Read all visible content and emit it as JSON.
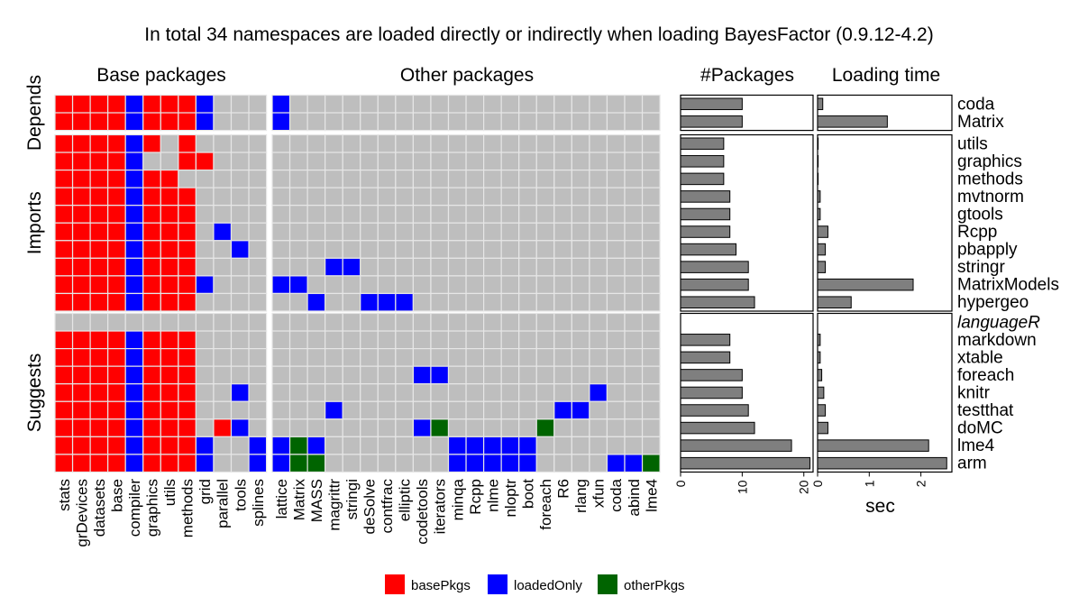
{
  "title": "In total 34 namespaces are loaded directly or indirectly when loading BayesFactor (0.9.12-4.2)",
  "panel_titles": {
    "base": "Base packages",
    "other": "Other packages",
    "count": "#Packages",
    "time": "Loading time"
  },
  "group_labels": [
    "Depends",
    "Imports",
    "Suggests"
  ],
  "legend": [
    {
      "label": "basePkgs",
      "color": "#ff0000"
    },
    {
      "label": "loadedOnly",
      "color": "#0000ff"
    },
    {
      "label": "otherPkgs",
      "color": "#006400"
    }
  ],
  "colors": {
    "empty": "#bebebe",
    "grid": "#e6e6e6",
    "bar": "#7f7f7f",
    "muted": "#aaaaaa"
  },
  "chart_data": {
    "type": "heatmap",
    "base_columns": [
      "stats",
      "grDevices",
      "datasets",
      "base",
      "compiler",
      "graphics",
      "utils",
      "methods",
      "grid",
      "parallel",
      "tools",
      "splines"
    ],
    "other_columns": [
      "lattice",
      "Matrix",
      "MASS",
      "magrittr",
      "stringi",
      "deSolve",
      "contfrac",
      "elliptic",
      "codetools",
      "iterators",
      "minqa",
      "Rcpp",
      "nlme",
      "nloptr",
      "boot",
      "foreach",
      "R6",
      "rlang",
      "xfun",
      "coda",
      "abind",
      "lme4"
    ],
    "rows": [
      {
        "group": 0,
        "name": "coda",
        "italic": false,
        "npkgs": 10,
        "time": 0.1,
        "base": "RRRRBRRRBOOO",
        "other": "BOOOOOOOOOOOOOOOOOOOOO"
      },
      {
        "group": 0,
        "name": "Matrix",
        "italic": false,
        "npkgs": 10,
        "time": 1.35,
        "base": "RRRRBRRRBOOO",
        "other": "BOOOOOOOOOOOOOOOOOOOOO"
      },
      {
        "group": 1,
        "name": "utils",
        "italic": false,
        "npkgs": 7,
        "time": 0.0,
        "base": "RRRRBROROOOO",
        "other": "OOOOOOOOOOOOOOOOOOOOOO"
      },
      {
        "group": 1,
        "name": "graphics",
        "italic": false,
        "npkgs": 7,
        "time": 0.0,
        "base": "RRRRBOORROOO",
        "other": "OOOOOOOOOOOOOOOOOOOOOO"
      },
      {
        "group": 1,
        "name": "methods",
        "italic": false,
        "npkgs": 7,
        "time": 0.0,
        "base": "RRRRBRROOOOO",
        "other": "OOOOOOOOOOOOOOOOOOOOOO"
      },
      {
        "group": 1,
        "name": "mvtnorm",
        "italic": false,
        "npkgs": 8,
        "time": 0.05,
        "base": "RRRRBRRROOOO",
        "other": "OOOOOOOOOOOOOOOOOOOOOO"
      },
      {
        "group": 1,
        "name": "gtools",
        "italic": false,
        "npkgs": 8,
        "time": 0.05,
        "base": "RRRRBRRROOOO",
        "other": "OOOOOOOOOOOOOOOOOOOOOO"
      },
      {
        "group": 1,
        "name": "Rcpp",
        "italic": false,
        "npkgs": 8,
        "time": 0.2,
        "base": "RRRRBRRROBOO",
        "other": "OOOOOOOOOOOOOOOOOOOOOO"
      },
      {
        "group": 1,
        "name": "pbapply",
        "italic": false,
        "npkgs": 9,
        "time": 0.15,
        "base": "RRRRBRRROOBO",
        "other": "OOOOOOOOOOOOOOOOOOOOOO"
      },
      {
        "group": 1,
        "name": "stringr",
        "italic": false,
        "npkgs": 11,
        "time": 0.15,
        "base": "RRRRBRRROOOO",
        "other": "OOOBBOOOOOOOOOOOOOOOOO"
      },
      {
        "group": 1,
        "name": "MatrixModels",
        "italic": false,
        "npkgs": 11,
        "time": 1.85,
        "base": "RRRRBRRRBOOO",
        "other": "BBOOOOOOOOOOOOOOOOOOOO"
      },
      {
        "group": 1,
        "name": "hypergeo",
        "italic": false,
        "npkgs": 12,
        "time": 0.65,
        "base": "RRRRBRRROOOO",
        "other": "OOBOOBBBOOOOOOOOOOOOOO"
      },
      {
        "group": 2,
        "name": "languageR",
        "italic": true,
        "npkgs": null,
        "time": null,
        "base": "OOOOOOOOOOOO",
        "other": "OOOOOOOOOOOOOOOOOOOOOO"
      },
      {
        "group": 2,
        "name": "markdown",
        "italic": false,
        "npkgs": 8,
        "time": 0.05,
        "base": "RRRRBRRROOOO",
        "other": "OOOOOOOOOOOOOOOOOOOOOO"
      },
      {
        "group": 2,
        "name": "xtable",
        "italic": false,
        "npkgs": 8,
        "time": 0.05,
        "base": "RRRRBRRROOOO",
        "other": "OOOOOOOOOOOOOOOOOOOOOO"
      },
      {
        "group": 2,
        "name": "foreach",
        "italic": false,
        "npkgs": 10,
        "time": 0.08,
        "base": "RRRRBRRROOOO",
        "other": "OOOOOOOOBBOOOOOOOOOOOO"
      },
      {
        "group": 2,
        "name": "knitr",
        "italic": false,
        "npkgs": 10,
        "time": 0.12,
        "base": "RRRRBRRROOBO",
        "other": "OOOOOOOOOOOOOOOOOOBOOO"
      },
      {
        "group": 2,
        "name": "testthat",
        "italic": false,
        "npkgs": 11,
        "time": 0.15,
        "base": "RRRRBRRROOOO",
        "other": "OOOBOOOOOOOOOOOOBBOOOO"
      },
      {
        "group": 2,
        "name": "doMC",
        "italic": false,
        "npkgs": 12,
        "time": 0.2,
        "base": "RRRRBRRRORBO",
        "other": "OOOOOOOOBGOOOOOGOOOOOO"
      },
      {
        "group": 2,
        "name": "lme4",
        "italic": false,
        "npkgs": 18,
        "time": 2.15,
        "base": "RRRRBRRRBOOB",
        "other": "BGBOOOOOOOBBBBBOOOOOOO"
      },
      {
        "group": 2,
        "name": "arm",
        "italic": false,
        "npkgs": 21,
        "time": 2.5,
        "base": "RRRRBRRRBOOB",
        "other": "BGGOOOOOOOBBBBBOOOOBBG"
      }
    ],
    "count_axis": {
      "ticks": [
        0,
        10,
        20
      ],
      "xlim": [
        0,
        21.5
      ],
      "label": ""
    },
    "time_axis": {
      "ticks": [
        0,
        1,
        2
      ],
      "xlim": [
        0,
        2.6
      ],
      "label": "sec"
    }
  }
}
